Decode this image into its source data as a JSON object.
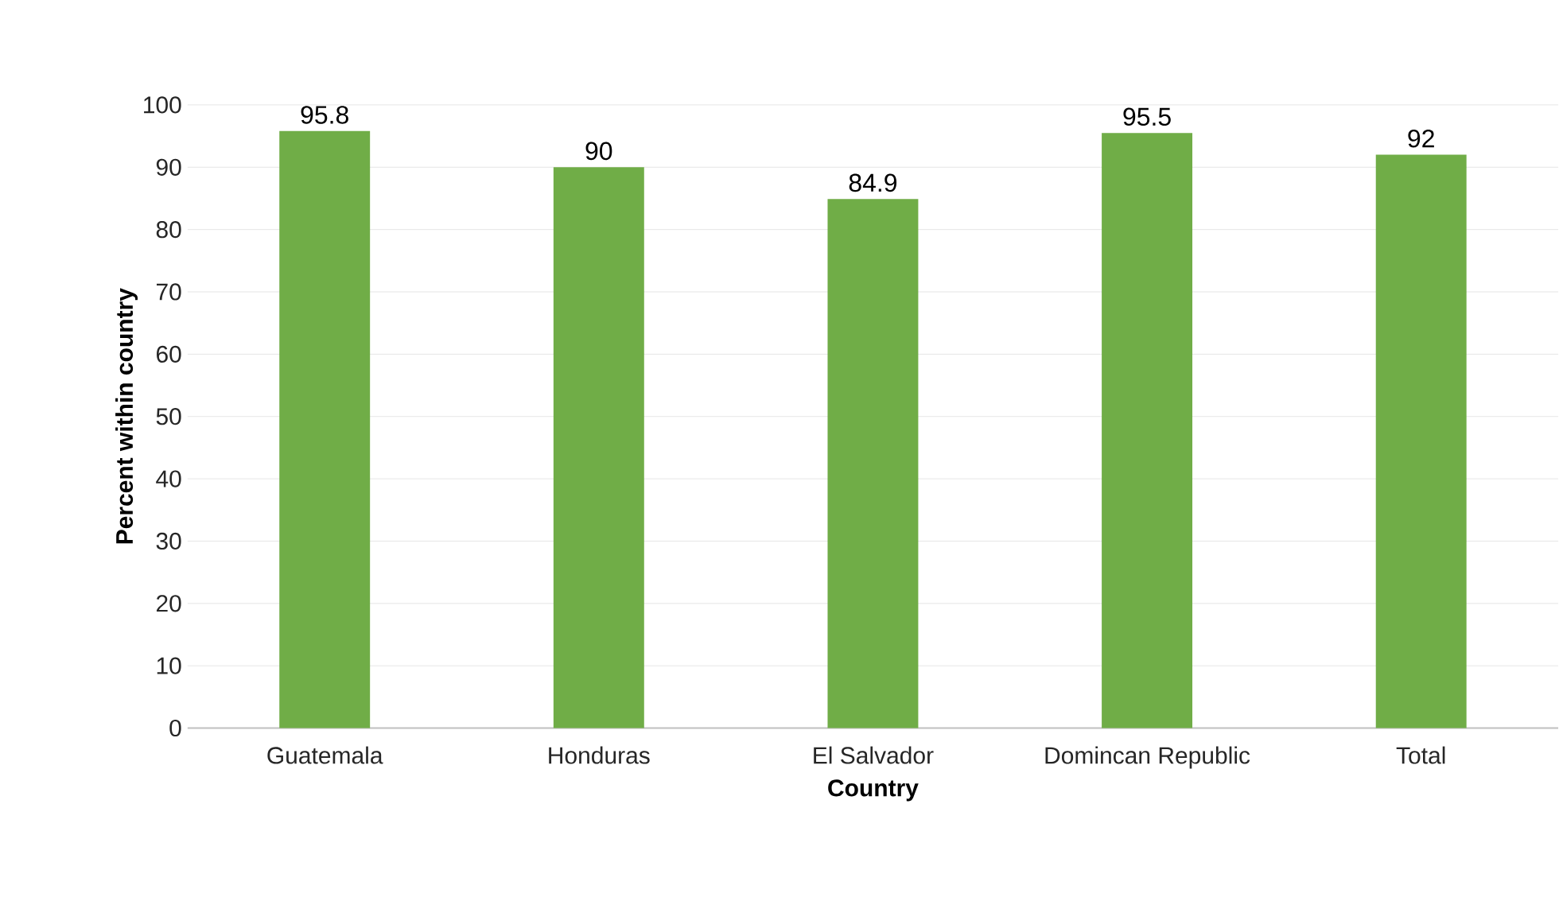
{
  "chart_data": {
    "type": "bar",
    "xlabel": "Country",
    "ylabel": "Percent within country",
    "categories": [
      "Guatemala",
      "Honduras",
      "El Salvador",
      "Domincan Republic",
      "Total"
    ],
    "values": [
      95.8,
      90,
      84.9,
      95.5,
      92
    ],
    "color": "#70ad47",
    "ylim": [
      0,
      100
    ],
    "yticks": [
      0,
      10,
      20,
      30,
      40,
      50,
      60,
      70,
      80,
      90,
      100
    ],
    "grid": "y",
    "data_labels": true
  }
}
